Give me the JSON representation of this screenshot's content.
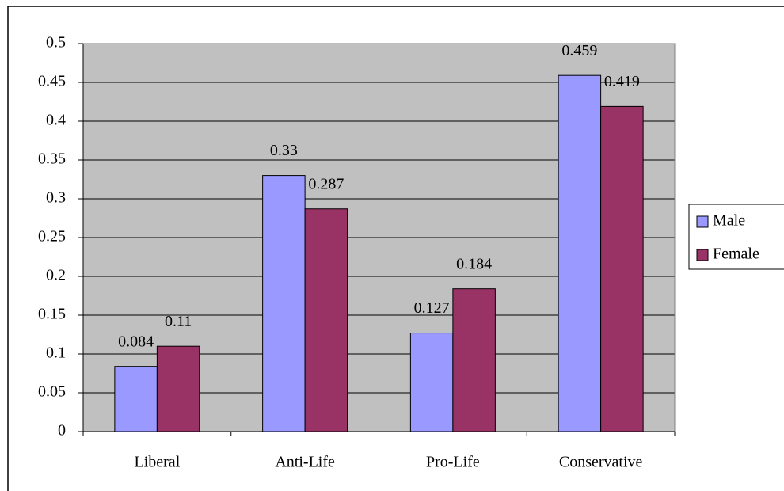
{
  "chart_data": {
    "type": "bar",
    "categories": [
      "Liberal",
      "Anti-Life",
      "Pro-Life",
      "Conservative"
    ],
    "series": [
      {
        "name": "Male",
        "color": "#9999ff",
        "values": [
          0.084,
          0.33,
          0.127,
          0.459
        ]
      },
      {
        "name": "Female",
        "color": "#993366",
        "values": [
          0.11,
          0.287,
          0.184,
          0.419
        ]
      }
    ],
    "ylim": [
      0,
      0.5
    ],
    "yticks": [
      0,
      0.05,
      0.1,
      0.15,
      0.2,
      0.25,
      0.3,
      0.35,
      0.4,
      0.45,
      0.5
    ],
    "grid": true,
    "legend": "right"
  }
}
